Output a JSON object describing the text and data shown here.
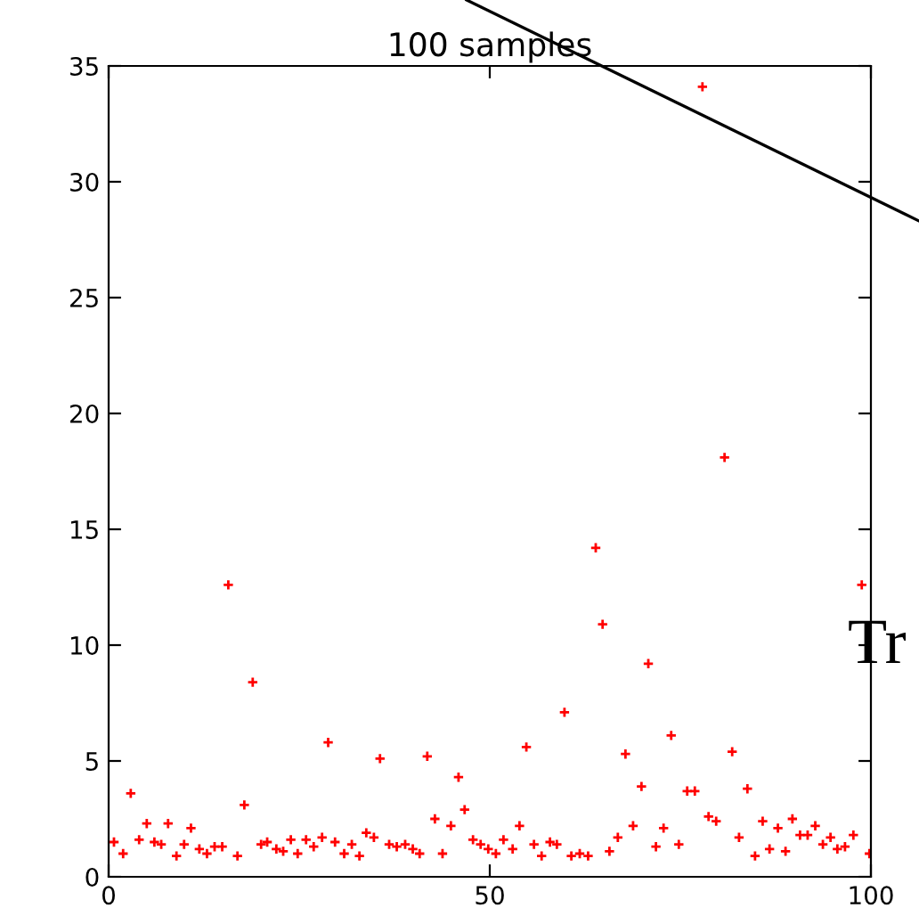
{
  "chart_data": {
    "type": "scatter",
    "title": "100 samples",
    "annotations": [
      "Tr"
    ],
    "x": [
      0.7,
      1.9,
      2.9,
      4.0,
      5.0,
      6.0,
      6.9,
      7.8,
      8.9,
      9.9,
      10.8,
      11.9,
      12.9,
      13.9,
      14.9,
      15.7,
      16.9,
      17.8,
      18.9,
      20.0,
      20.8,
      22.0,
      22.9,
      23.9,
      24.8,
      25.9,
      26.9,
      28.0,
      28.8,
      29.7,
      30.9,
      31.9,
      32.9,
      33.8,
      34.8,
      35.6,
      36.8,
      37.8,
      38.9,
      39.9,
      40.8,
      41.8,
      42.8,
      43.8,
      44.9,
      45.9,
      46.7,
      47.8,
      48.8,
      49.8,
      50.8,
      51.8,
      53.0,
      53.9,
      54.8,
      55.8,
      56.8,
      57.9,
      58.8,
      59.8,
      60.7,
      61.8,
      62.9,
      63.9,
      64.8,
      65.7,
      66.8,
      67.8,
      68.8,
      69.9,
      70.8,
      71.8,
      72.8,
      73.8,
      74.8,
      75.9,
      76.9,
      77.9,
      78.7,
      79.7,
      80.8,
      81.8,
      82.7,
      83.8,
      84.8,
      85.8,
      86.7,
      87.8,
      88.8,
      89.7,
      90.7,
      91.7,
      92.7,
      93.7,
      94.7,
      95.6,
      96.6,
      97.7,
      98.8,
      99.8
    ],
    "series": [
      {
        "color": "#ff0000",
        "values": [
          1.5,
          1.0,
          3.6,
          1.6,
          2.3,
          1.5,
          1.4,
          2.3,
          0.9,
          1.4,
          2.1,
          1.2,
          1.0,
          1.3,
          1.3,
          12.6,
          0.9,
          3.1,
          8.4,
          1.4,
          1.5,
          1.2,
          1.1,
          1.6,
          1.0,
          1.6,
          1.3,
          1.7,
          5.8,
          1.5,
          1.0,
          1.4,
          0.9,
          1.9,
          1.7,
          5.1,
          1.4,
          1.3,
          1.4,
          1.2,
          1.0,
          5.2,
          2.5,
          1.0,
          2.2,
          4.3,
          2.9,
          1.6,
          1.4,
          1.2,
          1.0,
          1.6,
          1.2,
          2.2,
          5.6,
          1.4,
          0.9,
          1.5,
          1.4,
          7.1,
          0.9,
          1.0,
          0.9,
          14.2,
          10.9,
          1.1,
          1.7,
          5.3,
          2.2,
          3.9,
          9.2,
          1.3,
          2.1,
          6.1,
          1.4,
          3.7,
          3.7,
          34.1,
          2.6,
          2.4,
          18.1,
          5.4,
          1.7,
          3.8,
          0.9,
          2.4,
          1.2,
          2.1,
          1.1,
          2.5,
          1.8,
          1.8,
          2.2,
          1.4,
          1.7,
          1.2,
          1.3,
          1.8,
          12.6,
          1.0
        ]
      }
    ],
    "marker": "cross",
    "xlim": [
      0,
      100
    ],
    "xticks": [
      0,
      50,
      100
    ],
    "ylim": [
      0,
      35
    ],
    "yticks": [
      0,
      5,
      10,
      15,
      20,
      25,
      30,
      35
    ],
    "grid": false,
    "legend": false
  }
}
